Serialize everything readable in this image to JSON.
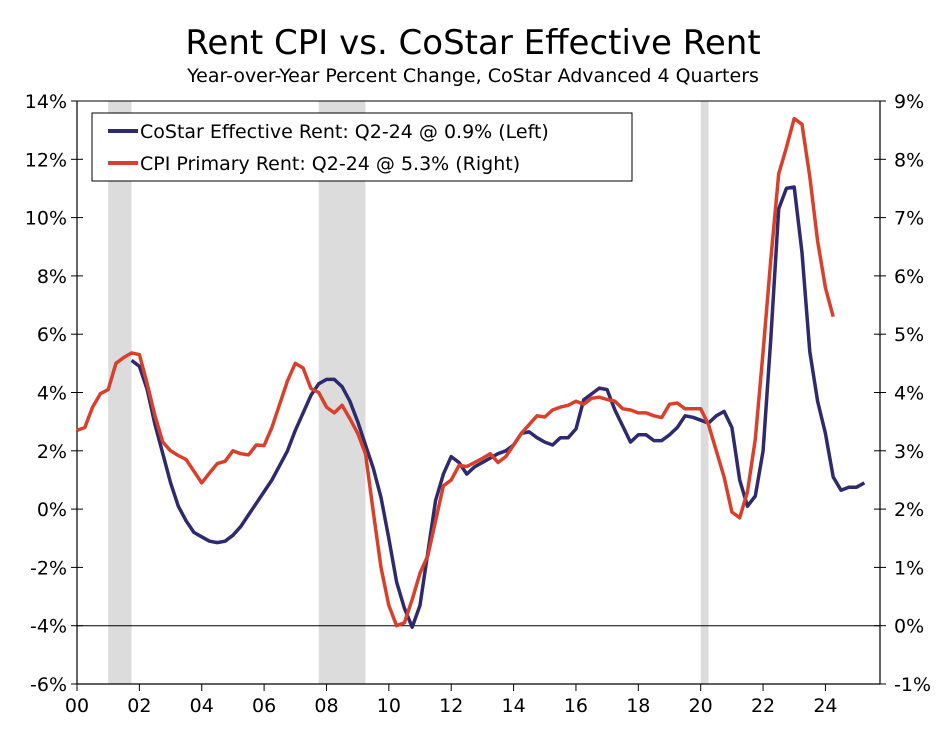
{
  "chart_data": {
    "type": "line",
    "title": "Rent CPI vs. CoStar Effective Rent",
    "subtitle": "Year-over-Year Percent Change, CoStar Advanced 4 Quarters",
    "x_tick_labels": [
      "00",
      "02",
      "04",
      "06",
      "08",
      "10",
      "12",
      "14",
      "16",
      "18",
      "20",
      "22",
      "24"
    ],
    "x_ticks": [
      2000,
      2002,
      2004,
      2006,
      2008,
      2010,
      2012,
      2014,
      2016,
      2018,
      2020,
      2022,
      2024
    ],
    "xlim": [
      2000,
      2025.75
    ],
    "y_left": {
      "lim": [
        -6,
        14
      ],
      "ticks": [
        -6,
        -4,
        -2,
        0,
        2,
        4,
        6,
        8,
        10,
        12,
        14
      ],
      "tick_labels": [
        "-6%",
        "-4%",
        "-2%",
        "0%",
        "2%",
        "4%",
        "6%",
        "8%",
        "10%",
        "12%",
        "14%"
      ]
    },
    "y_right": {
      "lim": [
        -1,
        9
      ],
      "ticks": [
        -1,
        0,
        1,
        2,
        3,
        4,
        5,
        6,
        7,
        8,
        9
      ],
      "tick_labels": [
        "-1%",
        "0%",
        "1%",
        "2%",
        "3%",
        "4%",
        "5%",
        "6%",
        "7%",
        "8%",
        "9%"
      ]
    },
    "reference_line_right_axis": 0,
    "recessions": [
      [
        2001.0,
        2001.75
      ],
      [
        2007.75,
        2009.25
      ],
      [
        2020.0,
        2020.25
      ]
    ],
    "grid": false,
    "legend_placement": "top-left",
    "colors": {
      "costar": "#2e2a6e",
      "cpi": "#d9402b",
      "recession": "#dcdcdc"
    },
    "series": [
      {
        "name": "CoStar Effective Rent: Q2-24 @ 0.9% (Left)",
        "axis": "left",
        "x_start": 2001.75,
        "x_step": 0.25,
        "values": [
          5.1,
          4.9,
          4.1,
          2.9,
          1.9,
          0.9,
          0.1,
          -0.4,
          -0.8,
          -0.95,
          -1.1,
          -1.15,
          -1.1,
          -0.9,
          -0.6,
          -0.2,
          0.2,
          0.6,
          1.0,
          1.5,
          2.0,
          2.7,
          3.3,
          3.9,
          4.3,
          4.45,
          4.45,
          4.2,
          3.7,
          3.0,
          2.2,
          1.4,
          0.4,
          -1.0,
          -2.5,
          -3.4,
          -4.05,
          -3.3,
          -1.5,
          0.3,
          1.2,
          1.8,
          1.6,
          1.2,
          1.45,
          1.6,
          1.75,
          1.9,
          2.0,
          2.2,
          2.6,
          2.65,
          2.45,
          2.3,
          2.2,
          2.45,
          2.45,
          2.75,
          3.75,
          3.95,
          4.15,
          4.1,
          3.4,
          2.85,
          2.3,
          2.55,
          2.55,
          2.35,
          2.35,
          2.55,
          2.8,
          3.2,
          3.15,
          3.05,
          2.95,
          3.2,
          3.35,
          2.8,
          1.0,
          0.1,
          0.45,
          2.0,
          5.9,
          10.3,
          11.0,
          11.05,
          8.8,
          5.4,
          3.7,
          2.6,
          1.1,
          0.65,
          0.75,
          0.75,
          0.9
        ]
      },
      {
        "name": "CPI Primary Rent: Q2-24 @ 5.3% (Right)",
        "axis": "right",
        "x_start": 2000.0,
        "x_step": 0.25,
        "values": [
          3.35,
          3.4,
          3.75,
          3.98,
          4.05,
          4.5,
          4.6,
          4.68,
          4.65,
          4.15,
          3.6,
          3.15,
          3.0,
          2.92,
          2.85,
          2.65,
          2.45,
          2.62,
          2.78,
          2.82,
          3.0,
          2.95,
          2.93,
          3.1,
          3.09,
          3.4,
          3.8,
          4.2,
          4.5,
          4.42,
          4.07,
          4.0,
          3.75,
          3.65,
          3.78,
          3.55,
          3.3,
          2.95,
          1.95,
          1.0,
          0.35,
          0.0,
          0.05,
          0.45,
          0.9,
          1.2,
          1.8,
          2.4,
          2.5,
          2.75,
          2.73,
          2.8,
          2.87,
          2.95,
          2.8,
          2.9,
          3.1,
          3.3,
          3.45,
          3.6,
          3.58,
          3.7,
          3.75,
          3.78,
          3.85,
          3.8,
          3.9,
          3.92,
          3.88,
          3.85,
          3.72,
          3.7,
          3.65,
          3.65,
          3.6,
          3.57,
          3.8,
          3.82,
          3.72,
          3.72,
          3.72,
          3.45,
          3.0,
          2.55,
          1.95,
          1.85,
          2.3,
          3.2,
          4.7,
          6.3,
          7.75,
          8.2,
          8.7,
          8.6,
          7.7,
          6.6,
          5.8,
          5.3
        ]
      }
    ]
  }
}
